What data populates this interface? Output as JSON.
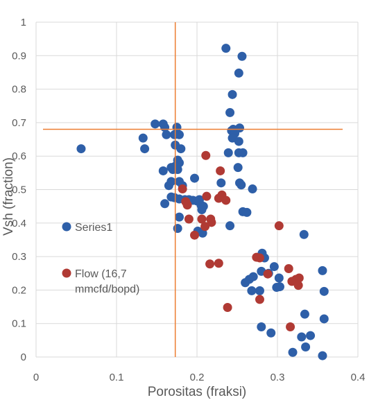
{
  "chart_data": {
    "type": "scatter",
    "xlabel": "Porositas (fraksi)",
    "ylabel": "Vsh (fraction)",
    "xlim": [
      0,
      0.4
    ],
    "ylim": [
      0,
      1
    ],
    "x_ticks": [
      "0",
      "0.1",
      "0.2",
      "0.3",
      "0.4"
    ],
    "y_ticks": [
      "0",
      "0.1",
      "0.2",
      "0.3",
      "0.4",
      "0.5",
      "0.6",
      "0.7",
      "0.8",
      "0.9",
      "1"
    ],
    "grid": true,
    "legend_position": "left-inside",
    "cutoff_lines": {
      "porosity": 0.173,
      "vsh": 0.68,
      "color": "#ED7D31"
    },
    "series": [
      {
        "name": "Series1",
        "color": "#2E5FA8",
        "points": [
          [
            0.056,
            0.622
          ],
          [
            0.133,
            0.654
          ],
          [
            0.135,
            0.622
          ],
          [
            0.148,
            0.696
          ],
          [
            0.158,
            0.696
          ],
          [
            0.16,
            0.686
          ],
          [
            0.162,
            0.664
          ],
          [
            0.175,
            0.686
          ],
          [
            0.178,
            0.664
          ],
          [
            0.172,
            0.664
          ],
          [
            0.173,
            0.633
          ],
          [
            0.18,
            0.622
          ],
          [
            0.176,
            0.588
          ],
          [
            0.178,
            0.58
          ],
          [
            0.173,
            0.57
          ],
          [
            0.158,
            0.556
          ],
          [
            0.168,
            0.566
          ],
          [
            0.17,
            0.56
          ],
          [
            0.176,
            0.56
          ],
          [
            0.197,
            0.534
          ],
          [
            0.165,
            0.512
          ],
          [
            0.168,
            0.524
          ],
          [
            0.178,
            0.524
          ],
          [
            0.182,
            0.512
          ],
          [
            0.16,
            0.458
          ],
          [
            0.168,
            0.478
          ],
          [
            0.172,
            0.476
          ],
          [
            0.178,
            0.472
          ],
          [
            0.185,
            0.47
          ],
          [
            0.19,
            0.47
          ],
          [
            0.195,
            0.468
          ],
          [
            0.2,
            0.466
          ],
          [
            0.203,
            0.47
          ],
          [
            0.205,
            0.454
          ],
          [
            0.208,
            0.45
          ],
          [
            0.206,
            0.44
          ],
          [
            0.178,
            0.418
          ],
          [
            0.176,
            0.384
          ],
          [
            0.201,
            0.376
          ],
          [
            0.207,
            0.37
          ],
          [
            0.23,
            0.52
          ],
          [
            0.236,
            0.922
          ],
          [
            0.256,
            0.898
          ],
          [
            0.252,
            0.848
          ],
          [
            0.244,
            0.784
          ],
          [
            0.241,
            0.73
          ],
          [
            0.243,
            0.676
          ],
          [
            0.245,
            0.68
          ],
          [
            0.247,
            0.668
          ],
          [
            0.253,
            0.684
          ],
          [
            0.244,
            0.654
          ],
          [
            0.252,
            0.644
          ],
          [
            0.239,
            0.61
          ],
          [
            0.252,
            0.61
          ],
          [
            0.257,
            0.61
          ],
          [
            0.251,
            0.566
          ],
          [
            0.253,
            0.52
          ],
          [
            0.255,
            0.514
          ],
          [
            0.269,
            0.502
          ],
          [
            0.257,
            0.434
          ],
          [
            0.262,
            0.432
          ],
          [
            0.241,
            0.392
          ],
          [
            0.333,
            0.366
          ],
          [
            0.281,
            0.31
          ],
          [
            0.279,
            0.3
          ],
          [
            0.284,
            0.296
          ],
          [
            0.296,
            0.27
          ],
          [
            0.28,
            0.256
          ],
          [
            0.289,
            0.25
          ],
          [
            0.302,
            0.236
          ],
          [
            0.27,
            0.24
          ],
          [
            0.265,
            0.232
          ],
          [
            0.26,
            0.222
          ],
          [
            0.299,
            0.208
          ],
          [
            0.303,
            0.21
          ],
          [
            0.278,
            0.198
          ],
          [
            0.268,
            0.198
          ],
          [
            0.356,
            0.258
          ],
          [
            0.358,
            0.196
          ],
          [
            0.334,
            0.128
          ],
          [
            0.358,
            0.114
          ],
          [
            0.28,
            0.09
          ],
          [
            0.292,
            0.072
          ],
          [
            0.33,
            0.06
          ],
          [
            0.341,
            0.064
          ],
          [
            0.335,
            0.03
          ],
          [
            0.319,
            0.014
          ],
          [
            0.356,
            0.004
          ]
        ]
      },
      {
        "name": "Flow (16,7 mmcfd/bopd)",
        "color": "#B03A34",
        "points": [
          [
            0.211,
            0.602
          ],
          [
            0.229,
            0.556
          ],
          [
            0.182,
            0.502
          ],
          [
            0.212,
            0.48
          ],
          [
            0.227,
            0.474
          ],
          [
            0.231,
            0.484
          ],
          [
            0.236,
            0.468
          ],
          [
            0.188,
            0.454
          ],
          [
            0.186,
            0.464
          ],
          [
            0.19,
            0.412
          ],
          [
            0.206,
            0.412
          ],
          [
            0.217,
            0.412
          ],
          [
            0.218,
            0.402
          ],
          [
            0.21,
            0.39
          ],
          [
            0.197,
            0.364
          ],
          [
            0.302,
            0.392
          ],
          [
            0.274,
            0.298
          ],
          [
            0.278,
            0.296
          ],
          [
            0.216,
            0.278
          ],
          [
            0.227,
            0.28
          ],
          [
            0.314,
            0.264
          ],
          [
            0.288,
            0.248
          ],
          [
            0.318,
            0.226
          ],
          [
            0.323,
            0.232
          ],
          [
            0.327,
            0.236
          ],
          [
            0.326,
            0.214
          ],
          [
            0.278,
            0.172
          ],
          [
            0.238,
            0.148
          ],
          [
            0.316,
            0.09
          ]
        ]
      }
    ]
  }
}
